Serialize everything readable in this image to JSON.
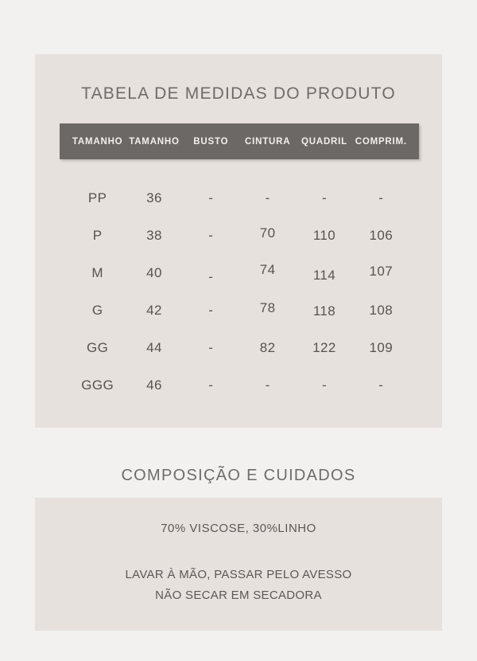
{
  "theme": {
    "page_background": "#f2f1f0",
    "panel_background": "#e7e1de",
    "header_bar_background": "#6b6866",
    "header_bar_text": "#f2efed",
    "heading_text": "#6f6b68",
    "body_text": "#57534f"
  },
  "size_table": {
    "title": "TABELA DE MEDIDAS DO PRODUTO",
    "columns": [
      "TAMANHO",
      "TAMANHO",
      "BUSTO",
      "CINTURA",
      "QUADRIL",
      "COMPRIM."
    ],
    "rows": [
      [
        "PP",
        "36",
        "-",
        "-",
        "-",
        "-"
      ],
      [
        "P",
        "38",
        "-",
        "70",
        "110",
        "106"
      ],
      [
        "M",
        "40",
        "-",
        "74",
        "114",
        "107"
      ],
      [
        "G",
        "42",
        "-",
        "78",
        "118",
        "108"
      ],
      [
        "GG",
        "44",
        "-",
        "82",
        "122",
        "109"
      ],
      [
        "GGG",
        "46",
        "-",
        "-",
        "-",
        "-"
      ]
    ]
  },
  "care": {
    "title": "COMPOSIÇÃO E CUIDADOS",
    "composition": "70% VISCOSE, 30%LINHO",
    "instructions": [
      "LAVAR À MÃO, PASSAR PELO AVESSO",
      "NÃO SECAR EM SECADORA"
    ]
  }
}
